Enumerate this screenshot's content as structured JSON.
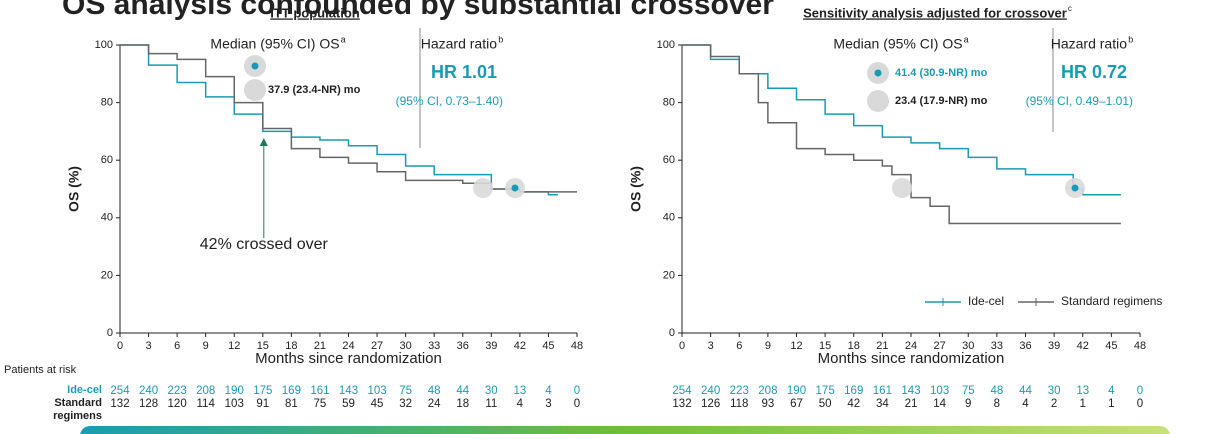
{
  "title": "OS analysis confounded by substantial crossover",
  "risk_table": {
    "title": "Patients at risk",
    "row_labels": [
      "Ide-cel",
      "Standard regimens"
    ],
    "row_colors": [
      "#1a9bb5",
      "#222222"
    ]
  },
  "chart_data": [
    {
      "type": "line",
      "subtitle": "ITT population",
      "xlabel": "Months since randomization",
      "ylabel": "OS (%)",
      "xlim": [
        0,
        48
      ],
      "xticks": [
        0,
        3,
        6,
        9,
        12,
        15,
        18,
        21,
        24,
        27,
        30,
        33,
        36,
        39,
        42,
        45,
        48
      ],
      "ylim": [
        0,
        100
      ],
      "yticks": [
        0,
        20,
        40,
        60,
        80,
        100
      ],
      "series": [
        {
          "name": "Ide-cel",
          "color": "#1a9bb5",
          "x": [
            0,
            3,
            6,
            9,
            12,
            15,
            18,
            21,
            24,
            27,
            30,
            33,
            36,
            39,
            42,
            45,
            46
          ],
          "values": [
            100,
            93,
            87,
            82,
            76,
            70,
            68,
            67,
            65,
            62,
            58,
            55,
            55,
            50,
            49,
            48,
            48
          ]
        },
        {
          "name": "Standard regimens",
          "color": "#666666",
          "x": [
            0,
            3,
            6,
            9,
            12,
            15,
            18,
            21,
            24,
            27,
            30,
            33,
            36,
            39,
            42,
            48
          ],
          "values": [
            100,
            97,
            95,
            89,
            80,
            71,
            64,
            61,
            59,
            56,
            53,
            53,
            52,
            50,
            49,
            49
          ]
        }
      ],
      "median_header": "Median (95% CI) OS",
      "median_header_sup": "a",
      "median_labels": [
        null,
        "37.9 (23.4-NR) mo"
      ],
      "hazard_header": "Hazard ratio",
      "hazard_header_sup": "b",
      "hr": "HR 1.01",
      "hr_ci": "(95% CI, 0.73–1.40)",
      "annotation": "42% crossed over",
      "at_risk": [
        [
          "254",
          "240",
          "223",
          "208",
          "190",
          "175",
          "169",
          "161",
          "143",
          "103",
          "75",
          "48",
          "44",
          "30",
          "13",
          "4",
          "0"
        ],
        [
          "132",
          "128",
          "120",
          "114",
          "103",
          "91",
          "81",
          "75",
          "59",
          "45",
          "32",
          "24",
          "18",
          "11",
          "4",
          "3",
          "0"
        ]
      ]
    },
    {
      "type": "line",
      "subtitle": "Sensitivity analysis adjusted for crossover",
      "subtitle_sup": "c",
      "xlabel": "Months since randomization",
      "ylabel": "OS (%)",
      "xlim": [
        0,
        48
      ],
      "xticks": [
        0,
        3,
        6,
        9,
        12,
        15,
        18,
        21,
        24,
        27,
        30,
        33,
        36,
        39,
        42,
        45,
        48
      ],
      "ylim": [
        0,
        100
      ],
      "yticks": [
        0,
        20,
        40,
        60,
        80,
        100
      ],
      "legend": "lower right",
      "series": [
        {
          "name": "Ide-cel",
          "color": "#1a9bb5",
          "x": [
            0,
            3,
            6,
            9,
            12,
            15,
            18,
            21,
            24,
            27,
            30,
            33,
            36,
            39,
            41,
            42,
            46
          ],
          "values": [
            100,
            95,
            90,
            85,
            81,
            76,
            72,
            68,
            66,
            64,
            61,
            57,
            55,
            55,
            50,
            48,
            48
          ]
        },
        {
          "name": "Standard regimens",
          "color": "#666666",
          "x": [
            0,
            3,
            6,
            8,
            9,
            12,
            15,
            18,
            21,
            22,
            24,
            26,
            28,
            46
          ],
          "values": [
            100,
            96,
            90,
            80,
            73,
            64,
            62,
            60,
            58,
            55,
            47,
            44,
            38,
            38
          ]
        }
      ],
      "median_header": "Median (95% CI) OS",
      "median_header_sup": "a",
      "median_labels": [
        "41.4 (30.9-NR) mo",
        "23.4 (17.9-NR) mo"
      ],
      "hazard_header": "Hazard ratio",
      "hazard_header_sup": "b",
      "hr": "HR 0.72",
      "hr_ci": "(95% CI, 0.49–1.01)",
      "at_risk": [
        [
          "254",
          "240",
          "223",
          "208",
          "190",
          "175",
          "169",
          "161",
          "143",
          "103",
          "75",
          "48",
          "44",
          "30",
          "13",
          "4",
          "0"
        ],
        [
          "132",
          "126",
          "118",
          "93",
          "67",
          "50",
          "42",
          "34",
          "21",
          "14",
          "9",
          "8",
          "4",
          "2",
          "1",
          "1",
          "0"
        ]
      ]
    }
  ]
}
